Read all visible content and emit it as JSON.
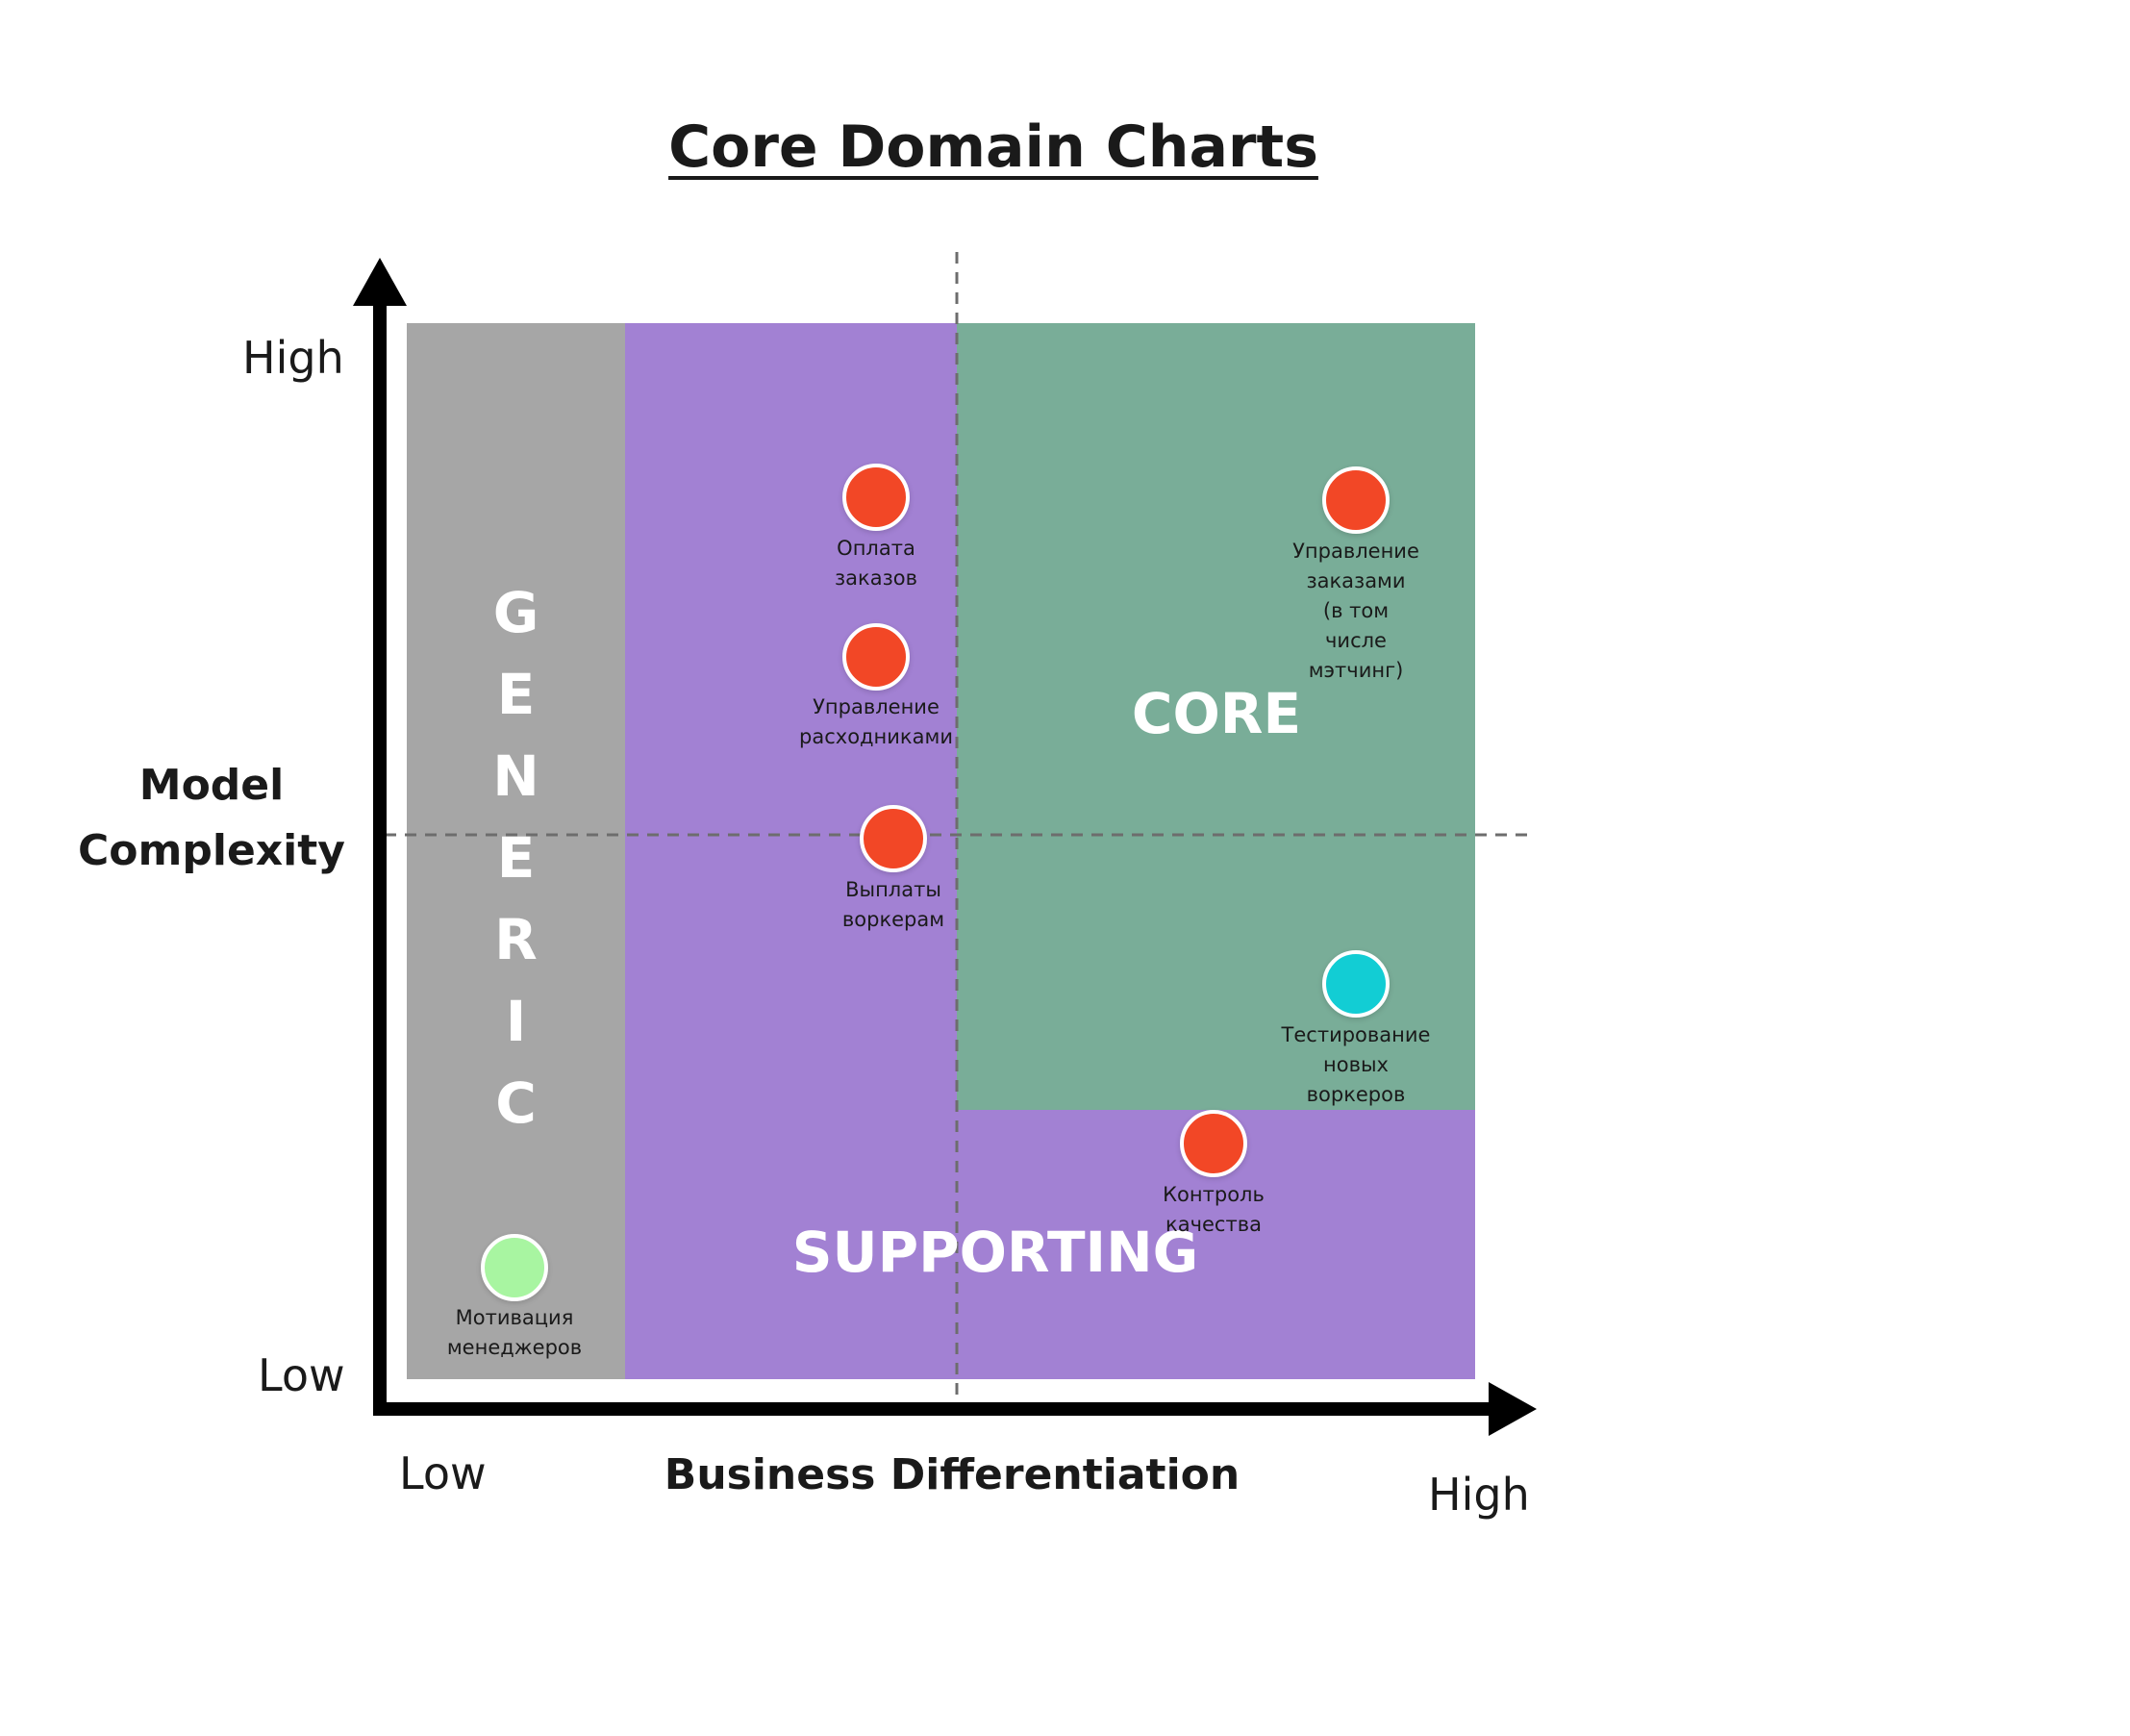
{
  "title": "Core Domain Charts",
  "axes": {
    "y_title_line1": "Model",
    "y_title_line2": "Complexity",
    "y_high": "High",
    "y_low": "Low",
    "x_title": "Business Differentiation",
    "x_low": "Low",
    "x_high": "High"
  },
  "zones": {
    "generic_letters": [
      "G",
      "E",
      "N",
      "E",
      "R",
      "I",
      "C"
    ],
    "core": "CORE",
    "supporting": "SUPPORTING"
  },
  "colors": {
    "generic": "#a6a6a6",
    "supporting": "#a281d3",
    "core": "#79ad98",
    "dot_red": "#f24726",
    "dot_cyan": "#12cdd4",
    "dot_green": "#a8f5a1"
  },
  "items": [
    {
      "label_lines": [
        "Оплата",
        "заказов"
      ],
      "color": "#f24726"
    },
    {
      "label_lines": [
        "Управление",
        "расходниками"
      ],
      "color": "#f24726"
    },
    {
      "label_lines": [
        "Выплаты",
        "воркерам"
      ],
      "color": "#f24726"
    },
    {
      "label_lines": [
        "Управление",
        "заказами",
        "(в том",
        "числе",
        "мэтчинг)"
      ],
      "color": "#f24726"
    },
    {
      "label_lines": [
        "Тестирование",
        "новых",
        "воркеров"
      ],
      "color": "#12cdd4"
    },
    {
      "label_lines": [
        "Контроль",
        "качества"
      ],
      "color": "#f24726"
    },
    {
      "label_lines": [
        "Мотивация",
        "менеджеров"
      ],
      "color": "#a8f5a1"
    }
  ]
}
